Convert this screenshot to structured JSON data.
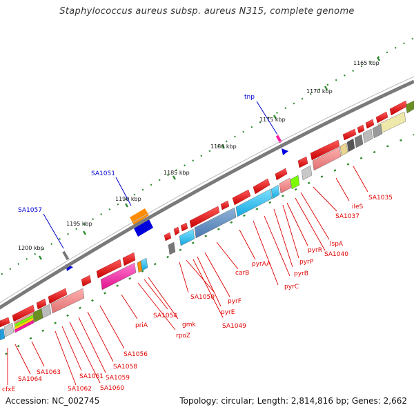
{
  "title": "Staphylococcus aureus subsp. aureus N315, complete genome",
  "footer": {
    "accession": "Accession: NC_002745",
    "topology": "Topology: circular; Length: 2,814,816 bp; Genes: 2,662"
  },
  "scale_labels": [
    "1165 kbp",
    "1170 kbp",
    "1175 kbp",
    "1180 kbp",
    "1185 kbp",
    "1190 kbp",
    "1195 kbp",
    "1200 kbp"
  ],
  "blue_labels": [
    "tnp",
    "SA1051",
    "SA1057"
  ],
  "red_labels": [
    "SA1035",
    "ileS",
    "SA1037",
    "lspA",
    "SA1040",
    "pyrR",
    "pyrP",
    "pyrB",
    "pyrC",
    "pyrAA",
    "carB",
    "pyrF",
    "pyrE",
    "SA1049",
    "SA1050",
    "gmk",
    "SA1054",
    "rpoZ",
    "priA",
    "SA1056",
    "SA1058",
    "SA1059",
    "SA1060",
    "SA1061",
    "SA1062",
    "SA1063",
    "SA1064",
    "cfxE"
  ],
  "colors": {
    "forward_gene": "#ee0000",
    "reverse_gene": "#ee0000",
    "backbone": "#808080",
    "tick": "#2e8b2e",
    "red_label": "#e00000",
    "blue_label": "#0000cc"
  }
}
